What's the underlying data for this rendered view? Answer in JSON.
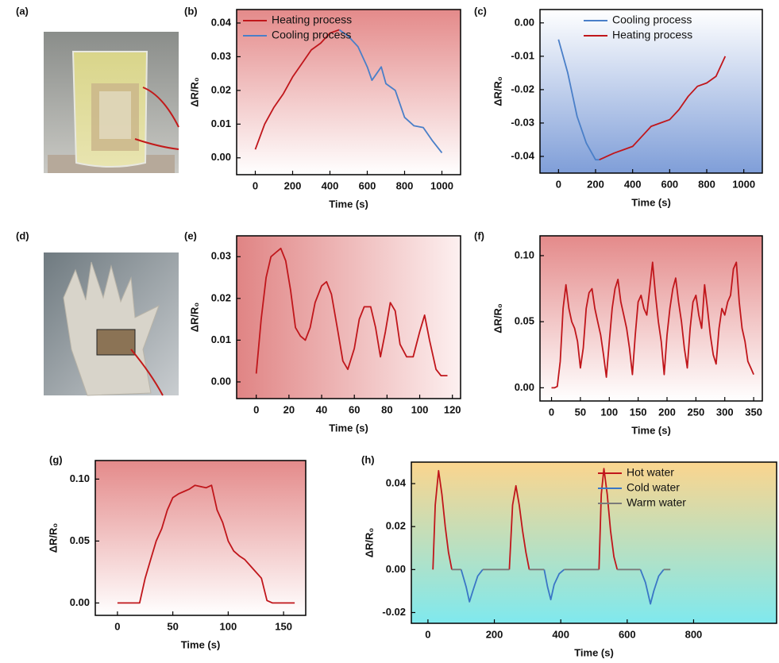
{
  "photo_panels": [
    {
      "label": "(a)"
    },
    {
      "label": "(d)"
    }
  ],
  "chart_data": [
    {
      "type": "line",
      "label": "(b)",
      "xlabel": "Time (s)",
      "ylabel": "ΔR/R₀",
      "legend": "upper left",
      "background": {
        "from": "#e48a8a",
        "to": "#ffffff",
        "direction": "vertical"
      },
      "xlim": [
        -100,
        1100
      ],
      "xticks": [
        0,
        200,
        400,
        600,
        800,
        1000
      ],
      "ylim": [
        -0.005,
        0.044
      ],
      "yticks": [
        {
          "value": 0,
          "label": "0.00"
        },
        0.01,
        0.02,
        0.03,
        0.04
      ],
      "series": [
        {
          "name": "Heating process",
          "color": "#c0161b",
          "x": [
            0,
            50,
            100,
            150,
            200,
            250,
            300,
            350,
            400,
            450
          ],
          "values": [
            0.0025,
            0.01,
            0.015,
            0.019,
            0.024,
            0.028,
            0.032,
            0.034,
            0.037,
            0.038
          ]
        },
        {
          "name": "Cooling process",
          "color": "#4a7fc8",
          "x": [
            450,
            500,
            550,
            600,
            625,
            650,
            675,
            700,
            750,
            800,
            850,
            900,
            950,
            1000
          ],
          "values": [
            0.038,
            0.036,
            0.033,
            0.027,
            0.023,
            0.025,
            0.027,
            0.022,
            0.02,
            0.012,
            0.0095,
            0.009,
            0.005,
            0.0015
          ]
        }
      ]
    },
    {
      "type": "line",
      "label": "(c)",
      "xlabel": "Time (s)",
      "ylabel": "ΔR/R₀",
      "legend": "upper right",
      "background": {
        "from": "#ffffff",
        "to": "#7f9ed8",
        "direction": "vertical"
      },
      "xlim": [
        -100,
        1100
      ],
      "xticks": [
        0,
        200,
        400,
        600,
        800,
        1000
      ],
      "ylim": [
        -0.045,
        0.004
      ],
      "yticks": [
        -0.04,
        -0.03,
        -0.02,
        -0.01,
        {
          "value": 0,
          "label": "0.00"
        }
      ],
      "series": [
        {
          "name": "Cooling process",
          "color": "#4a7fc8",
          "x": [
            0,
            50,
            100,
            150,
            200,
            220
          ],
          "values": [
            -0.005,
            -0.015,
            -0.028,
            -0.036,
            -0.041,
            -0.041
          ]
        },
        {
          "name": "Heating process",
          "color": "#c0161b",
          "x": [
            220,
            300,
            350,
            400,
            450,
            500,
            550,
            600,
            650,
            700,
            750,
            800,
            850,
            900
          ],
          "values": [
            -0.041,
            -0.039,
            -0.038,
            -0.037,
            -0.034,
            -0.031,
            -0.03,
            -0.029,
            -0.026,
            -0.022,
            -0.019,
            -0.018,
            -0.016,
            -0.01
          ]
        }
      ]
    },
    {
      "type": "line",
      "label": "(e)",
      "xlabel": "Time (s)",
      "ylabel": "ΔR/R₀",
      "background": {
        "from": "#e08484",
        "to": "#fdf0f0",
        "direction": "horizontal"
      },
      "xlim": [
        -12,
        125
      ],
      "xticks": [
        0,
        20,
        40,
        60,
        80,
        100,
        120
      ],
      "ylim": [
        -0.004,
        0.035
      ],
      "yticks": [
        {
          "value": 0,
          "label": "0.00"
        },
        0.01,
        0.02,
        0.03
      ],
      "series": [
        {
          "color": "#c0161b",
          "x": [
            0,
            3,
            6,
            9,
            12,
            15,
            18,
            21,
            24,
            27,
            30,
            33,
            36,
            40,
            43,
            46,
            50,
            53,
            56,
            60,
            63,
            66,
            70,
            73,
            76,
            79,
            82,
            85,
            88,
            92,
            96,
            100,
            103,
            106,
            110,
            113,
            117
          ],
          "values": [
            0.002,
            0.015,
            0.025,
            0.03,
            0.031,
            0.032,
            0.029,
            0.022,
            0.013,
            0.011,
            0.01,
            0.013,
            0.019,
            0.023,
            0.024,
            0.021,
            0.012,
            0.005,
            0.003,
            0.008,
            0.015,
            0.018,
            0.018,
            0.013,
            0.006,
            0.012,
            0.019,
            0.017,
            0.009,
            0.006,
            0.006,
            0.012,
            0.016,
            0.01,
            0.003,
            0.0015,
            0.0015
          ]
        }
      ]
    },
    {
      "type": "line",
      "label": "(f)",
      "xlabel": "Time (s)",
      "ylabel": "ΔR/R₀",
      "background": {
        "from": "#e48a8a",
        "to": "#ffffff",
        "direction": "vertical"
      },
      "xlim": [
        -20,
        365
      ],
      "xticks": [
        0,
        50,
        100,
        150,
        200,
        250,
        300,
        350
      ],
      "ylim": [
        -0.01,
        0.115
      ],
      "yticks": [
        {
          "value": 0,
          "label": "0.00"
        },
        0.05,
        {
          "value": 0.1,
          "label": "0.10"
        }
      ],
      "series": [
        {
          "color": "#c0161b",
          "x": [
            0,
            5,
            10,
            15,
            20,
            25,
            30,
            35,
            40,
            45,
            50,
            55,
            60,
            65,
            70,
            75,
            80,
            85,
            90,
            95,
            100,
            105,
            110,
            115,
            120,
            125,
            130,
            135,
            140,
            145,
            150,
            155,
            160,
            165,
            170,
            175,
            180,
            185,
            190,
            195,
            200,
            205,
            210,
            215,
            220,
            225,
            230,
            235,
            240,
            245,
            250,
            255,
            260,
            265,
            270,
            275,
            280,
            285,
            290,
            295,
            300,
            305,
            310,
            315,
            320,
            325,
            330,
            335,
            340,
            345,
            350
          ],
          "values": [
            0,
            0,
            0.001,
            0.02,
            0.06,
            0.078,
            0.06,
            0.05,
            0.045,
            0.035,
            0.015,
            0.03,
            0.06,
            0.072,
            0.075,
            0.06,
            0.05,
            0.04,
            0.025,
            0.008,
            0.035,
            0.06,
            0.075,
            0.082,
            0.065,
            0.055,
            0.045,
            0.03,
            0.01,
            0.04,
            0.065,
            0.07,
            0.06,
            0.055,
            0.075,
            0.095,
            0.07,
            0.05,
            0.035,
            0.01,
            0.04,
            0.06,
            0.075,
            0.083,
            0.065,
            0.05,
            0.03,
            0.015,
            0.045,
            0.065,
            0.07,
            0.055,
            0.045,
            0.078,
            0.06,
            0.04,
            0.025,
            0.018,
            0.045,
            0.06,
            0.055,
            0.065,
            0.07,
            0.09,
            0.095,
            0.065,
            0.045,
            0.035,
            0.02,
            0.015,
            0.01
          ]
        }
      ]
    },
    {
      "type": "line",
      "label": "(g)",
      "xlabel": "Time (s)",
      "ylabel": "ΔR/R₀",
      "background": {
        "from": "#e48a8a",
        "to": "#ffffff",
        "direction": "vertical"
      },
      "xlim": [
        -20,
        170
      ],
      "xticks": [
        0,
        50,
        100,
        150
      ],
      "ylim": [
        -0.01,
        0.115
      ],
      "yticks": [
        {
          "value": 0,
          "label": "0.00"
        },
        0.05,
        {
          "value": 0.1,
          "label": "0.10"
        }
      ],
      "series": [
        {
          "color": "#c0161b",
          "x": [
            0,
            5,
            10,
            15,
            20,
            25,
            30,
            35,
            40,
            45,
            50,
            55,
            60,
            65,
            70,
            75,
            80,
            85,
            90,
            95,
            100,
            105,
            110,
            115,
            120,
            125,
            130,
            135,
            140,
            145,
            150,
            155,
            160
          ],
          "values": [
            0,
            0,
            0,
            0,
            0,
            0.02,
            0.035,
            0.05,
            0.06,
            0.075,
            0.085,
            0.088,
            0.09,
            0.092,
            0.095,
            0.094,
            0.093,
            0.095,
            0.075,
            0.065,
            0.05,
            0.042,
            0.038,
            0.035,
            0.03,
            0.025,
            0.02,
            0.002,
            0,
            0,
            0,
            0,
            0
          ]
        }
      ]
    },
    {
      "type": "line",
      "label": "(h)",
      "xlabel": "Time (s)",
      "ylabel": "ΔR/R₀",
      "legend": "upper right",
      "background": {
        "from": "#fbd58e",
        "to": "#7fe9ee",
        "direction": "vertical"
      },
      "xlim": [
        -50,
        1050
      ],
      "xticks": [
        0,
        200,
        400,
        600,
        800
      ],
      "ylim": [
        -0.025,
        0.05
      ],
      "yticks": [
        -0.02,
        {
          "value": 0,
          "label": "0.00"
        },
        0.02,
        0.04
      ],
      "series": [
        {
          "name": "Hot water",
          "color": "#c0161b",
          "x": [
            15,
            22,
            32,
            42,
            52,
            62,
            72,
            150,
            245,
            255,
            265,
            275,
            285,
            295,
            305,
            400,
            515,
            522,
            530,
            540,
            550,
            560,
            570
          ],
          "values": [
            0,
            0.03,
            0.046,
            0.035,
            0.02,
            0.008,
            0,
            null,
            0,
            0.03,
            0.039,
            0.03,
            0.018,
            0.008,
            0,
            null,
            0,
            0.035,
            0.047,
            0.035,
            0.018,
            0.006,
            0
          ]
        },
        {
          "name": "Cold water",
          "color": "#3a76c6",
          "x": [
            100,
            115,
            125,
            135,
            150,
            165,
            250,
            350,
            360,
            370,
            380,
            395,
            410,
            500,
            640,
            655,
            670,
            680,
            695,
            710
          ],
          "values": [
            0,
            -0.008,
            -0.015,
            -0.01,
            -0.003,
            0,
            null,
            0,
            -0.008,
            -0.014,
            -0.007,
            -0.002,
            0,
            null,
            0,
            -0.006,
            -0.016,
            -0.01,
            -0.003,
            0
          ]
        },
        {
          "name": "Warm water",
          "color": "#7a7a7a",
          "x": [
            72,
            100,
            130,
            165,
            245,
            275,
            305,
            350,
            380,
            410,
            515,
            540,
            570,
            640,
            680,
            710,
            730
          ],
          "values": [
            0,
            0,
            null,
            0,
            0,
            null,
            0,
            0,
            null,
            0,
            0,
            null,
            0,
            0,
            null,
            0,
            0
          ]
        }
      ]
    }
  ]
}
